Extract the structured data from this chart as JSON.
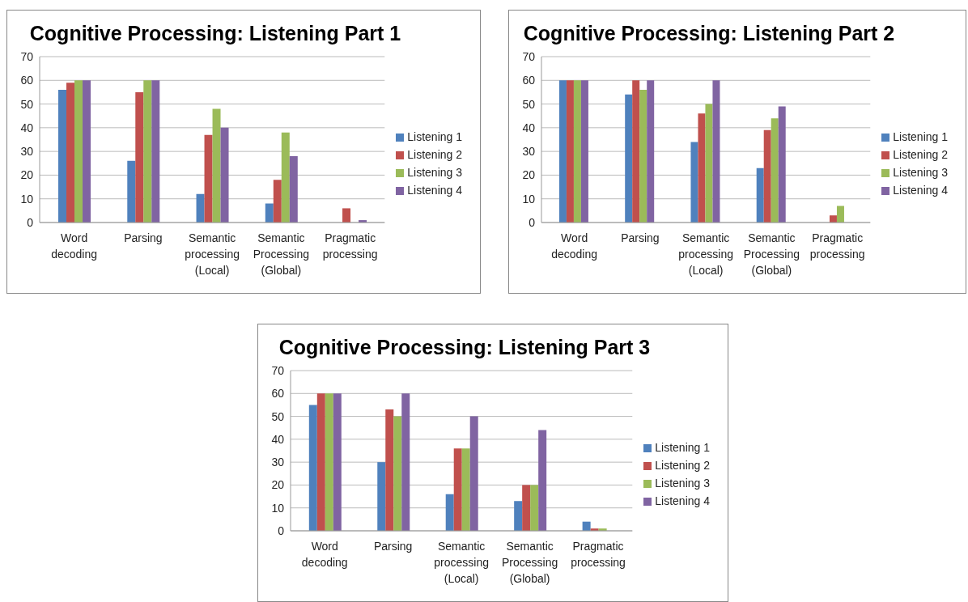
{
  "chart_data": [
    {
      "type": "bar",
      "title": "Cognitive Processing: Listening Part 1",
      "categories": [
        "Word decoding",
        "Parsing",
        "Semantic processing (Local)",
        "Semantic Processing (Global)",
        "Pragmatic processing"
      ],
      "series": [
        {
          "name": "Listening 1",
          "color": "#4f81bd",
          "values": [
            56,
            26,
            12,
            8,
            0
          ]
        },
        {
          "name": "Listening 2",
          "color": "#c0504d",
          "values": [
            59,
            55,
            37,
            18,
            6
          ]
        },
        {
          "name": "Listening 3",
          "color": "#9bbb59",
          "values": [
            60,
            60,
            48,
            38,
            0
          ]
        },
        {
          "name": "Listening 4",
          "color": "#8064a2",
          "values": [
            60,
            60,
            40,
            28,
            1
          ]
        }
      ],
      "ylim": [
        0,
        70
      ],
      "yticks": [
        0,
        10,
        20,
        30,
        40,
        50,
        60,
        70
      ],
      "grid": "y",
      "legend": "right"
    },
    {
      "type": "bar",
      "title": "Cognitive Processing: Listening Part 2",
      "categories": [
        "Word decoding",
        "Parsing",
        "Semantic processing (Local)",
        "Semantic Processing (Global)",
        "Pragmatic processing"
      ],
      "series": [
        {
          "name": "Listening 1",
          "color": "#4f81bd",
          "values": [
            60,
            54,
            34,
            23,
            0
          ]
        },
        {
          "name": "Listening 2",
          "color": "#c0504d",
          "values": [
            60,
            60,
            46,
            39,
            3
          ]
        },
        {
          "name": "Listening 3",
          "color": "#9bbb59",
          "values": [
            60,
            56,
            50,
            44,
            7
          ]
        },
        {
          "name": "Listening 4",
          "color": "#8064a2",
          "values": [
            60,
            60,
            60,
            49,
            0
          ]
        }
      ],
      "ylim": [
        0,
        70
      ],
      "yticks": [
        0,
        10,
        20,
        30,
        40,
        50,
        60,
        70
      ],
      "grid": "y",
      "legend": "right"
    },
    {
      "type": "bar",
      "title": "Cognitive Processing: Listening Part 3",
      "categories": [
        "Word decoding",
        "Parsing",
        "Semantic processing (Local)",
        "Semantic Processing (Global)",
        "Pragmatic processing"
      ],
      "series": [
        {
          "name": "Listening 1",
          "color": "#4f81bd",
          "values": [
            55,
            30,
            16,
            13,
            4
          ]
        },
        {
          "name": "Listening 2",
          "color": "#c0504d",
          "values": [
            60,
            53,
            36,
            20,
            1
          ]
        },
        {
          "name": "Listening 3",
          "color": "#9bbb59",
          "values": [
            60,
            50,
            36,
            20,
            1
          ]
        },
        {
          "name": "Listening 4",
          "color": "#8064a2",
          "values": [
            60,
            60,
            50,
            44,
            0
          ]
        }
      ],
      "ylim": [
        0,
        70
      ],
      "yticks": [
        0,
        10,
        20,
        30,
        40,
        50,
        60,
        70
      ],
      "grid": "y",
      "legend": "right"
    }
  ]
}
